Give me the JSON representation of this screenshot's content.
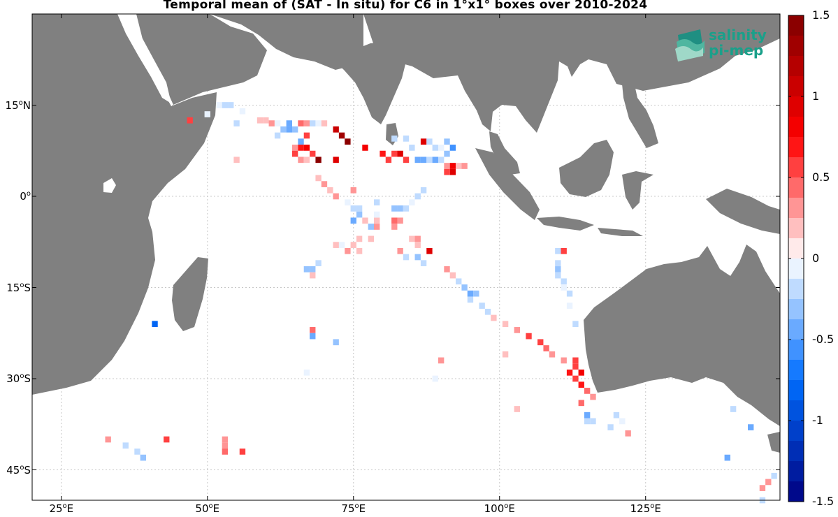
{
  "title": "Temporal mean of (SAT - In situ) for C6 in 1°x1° boxes over 2010-2024",
  "logo": {
    "line1": "salinity",
    "line2": "pi-mep"
  },
  "colors": {
    "land": "#808080",
    "ocean": "#ffffff",
    "grid": "#bbbbbb"
  },
  "map": {
    "lon_range": [
      20,
      148
    ],
    "lat_range": [
      -50,
      30
    ],
    "lat_ticks": [
      {
        "value": 15,
        "num": "15",
        "hem": "N"
      },
      {
        "value": 0,
        "num": "0",
        "hem": ""
      },
      {
        "value": -15,
        "num": "15",
        "hem": "S"
      },
      {
        "value": -30,
        "num": "30",
        "hem": "S"
      },
      {
        "value": -45,
        "num": "45",
        "hem": "S"
      }
    ],
    "lon_ticks": [
      {
        "value": 25,
        "num": "25",
        "hem": "E"
      },
      {
        "value": 50,
        "num": "50",
        "hem": "E"
      },
      {
        "value": 75,
        "num": "75",
        "hem": "E"
      },
      {
        "value": 100,
        "num": "100",
        "hem": "E"
      },
      {
        "value": 125,
        "num": "125",
        "hem": "E"
      }
    ]
  },
  "colorbar": {
    "min": -1.5,
    "max": 1.5,
    "ticks": [
      {
        "value": 1.5,
        "label": "1.5"
      },
      {
        "value": 1,
        "label": "1"
      },
      {
        "value": 0.5,
        "label": "0.5"
      },
      {
        "value": 0,
        "label": "0"
      },
      {
        "value": -0.5,
        "label": "-0.5"
      },
      {
        "value": -1,
        "label": "-1"
      },
      {
        "value": -1.5,
        "label": "-1.5"
      }
    ]
  },
  "chart_data": {
    "type": "heatmap",
    "title": "Temporal mean of (SAT - In situ) for C6 in 1°x1° boxes over 2010-2024",
    "value_range": [
      -1.5,
      1.5
    ],
    "boxes": [
      {
        "lon": 47,
        "lat": 12.5,
        "v": 0.6
      },
      {
        "lon": 50,
        "lat": 13.5,
        "v": -0.1
      },
      {
        "lon": 52,
        "lat": 15,
        "v": -0.1
      },
      {
        "lon": 53,
        "lat": 15,
        "v": -0.2
      },
      {
        "lon": 54,
        "lat": 15,
        "v": -0.15
      },
      {
        "lon": 55,
        "lat": 12,
        "v": -0.2
      },
      {
        "lon": 56,
        "lat": 14,
        "v": -0.1
      },
      {
        "lon": 59,
        "lat": 12.5,
        "v": 0.15
      },
      {
        "lon": 60,
        "lat": 12.5,
        "v": 0.2
      },
      {
        "lon": 61,
        "lat": 12,
        "v": 0.25
      },
      {
        "lon": 62,
        "lat": 12,
        "v": -0.1
      },
      {
        "lon": 62,
        "lat": 10,
        "v": -0.15
      },
      {
        "lon": 63,
        "lat": 11,
        "v": -0.3
      },
      {
        "lon": 64,
        "lat": 11,
        "v": -0.4
      },
      {
        "lon": 64,
        "lat": 12,
        "v": -0.5
      },
      {
        "lon": 65,
        "lat": 11,
        "v": -0.3
      },
      {
        "lon": 66,
        "lat": 12,
        "v": 0.4
      },
      {
        "lon": 67,
        "lat": 10,
        "v": 0.6
      },
      {
        "lon": 67,
        "lat": 12,
        "v": 0.3
      },
      {
        "lon": 68,
        "lat": 12,
        "v": -0.15
      },
      {
        "lon": 69,
        "lat": 12,
        "v": -0.1
      },
      {
        "lon": 70,
        "lat": 12,
        "v": 0.15
      },
      {
        "lon": 72,
        "lat": 11,
        "v": 1.1
      },
      {
        "lon": 73,
        "lat": 10,
        "v": 1.3
      },
      {
        "lon": 74,
        "lat": 9,
        "v": 1.5
      },
      {
        "lon": 66,
        "lat": 9,
        "v": -0.5
      },
      {
        "lon": 65,
        "lat": 8,
        "v": 0.3
      },
      {
        "lon": 66,
        "lat": 8,
        "v": 0.7
      },
      {
        "lon": 67,
        "lat": 8,
        "v": 0.8
      },
      {
        "lon": 68,
        "lat": 7,
        "v": 0.5
      },
      {
        "lon": 65,
        "lat": 7,
        "v": 0.5
      },
      {
        "lon": 69,
        "lat": 6,
        "v": 1.4
      },
      {
        "lon": 72,
        "lat": 6,
        "v": 0.9
      },
      {
        "lon": 66,
        "lat": 6,
        "v": 0.3
      },
      {
        "lon": 67,
        "lat": 6,
        "v": 0.2
      },
      {
        "lon": 77,
        "lat": 8,
        "v": 0.8
      },
      {
        "lon": 80,
        "lat": 7,
        "v": 0.7
      },
      {
        "lon": 81,
        "lat": 6,
        "v": 0.6
      },
      {
        "lon": 82,
        "lat": 7,
        "v": 0.5
      },
      {
        "lon": 83,
        "lat": 7,
        "v": 0.9
      },
      {
        "lon": 84,
        "lat": 6,
        "v": 0.6
      },
      {
        "lon": 85,
        "lat": 8,
        "v": -0.15
      },
      {
        "lon": 82,
        "lat": 9.5,
        "v": -0.2
      },
      {
        "lon": 84,
        "lat": 9.5,
        "v": -0.15
      },
      {
        "lon": 87,
        "lat": 9,
        "v": 0.9
      },
      {
        "lon": 88,
        "lat": 9,
        "v": -0.2
      },
      {
        "lon": 89,
        "lat": 8,
        "v": -0.15
      },
      {
        "lon": 90,
        "lat": 8,
        "v": -0.1
      },
      {
        "lon": 91,
        "lat": 9,
        "v": -0.3
      },
      {
        "lon": 92,
        "lat": 8,
        "v": -0.6
      },
      {
        "lon": 91,
        "lat": 7,
        "v": -0.3
      },
      {
        "lon": 86,
        "lat": 6,
        "v": -0.5
      },
      {
        "lon": 87,
        "lat": 6,
        "v": -0.5
      },
      {
        "lon": 88,
        "lat": 6,
        "v": -0.2
      },
      {
        "lon": 89,
        "lat": 6,
        "v": -0.4
      },
      {
        "lon": 90,
        "lat": 6,
        "v": -0.2
      },
      {
        "lon": 91,
        "lat": 5,
        "v": 0.3
      },
      {
        "lon": 92,
        "lat": 5,
        "v": 0.8
      },
      {
        "lon": 92,
        "lat": 4,
        "v": 0.9
      },
      {
        "lon": 91,
        "lat": 4,
        "v": 0.6
      },
      {
        "lon": 93,
        "lat": 5,
        "v": 0.2
      },
      {
        "lon": 94,
        "lat": 5,
        "v": 0.25
      },
      {
        "lon": 55,
        "lat": 6,
        "v": 0.2
      },
      {
        "lon": 69,
        "lat": 3,
        "v": 0.2
      },
      {
        "lon": 70,
        "lat": 2,
        "v": 0.25
      },
      {
        "lon": 71,
        "lat": 1,
        "v": 0.2
      },
      {
        "lon": 72,
        "lat": 0,
        "v": 0.25
      },
      {
        "lon": 74,
        "lat": -1,
        "v": -0.1
      },
      {
        "lon": 75,
        "lat": 1,
        "v": 0.3
      },
      {
        "lon": 75,
        "lat": -2,
        "v": -0.15
      },
      {
        "lon": 75,
        "lat": -4,
        "v": -0.5
      },
      {
        "lon": 76,
        "lat": -2,
        "v": -0.2
      },
      {
        "lon": 76,
        "lat": -3,
        "v": -0.3
      },
      {
        "lon": 77,
        "lat": -4,
        "v": 0.2
      },
      {
        "lon": 78,
        "lat": -5,
        "v": -0.3
      },
      {
        "lon": 79,
        "lat": -4,
        "v": 0.15
      },
      {
        "lon": 78,
        "lat": -7,
        "v": 0.2
      },
      {
        "lon": 75,
        "lat": -8,
        "v": 0.2
      },
      {
        "lon": 76,
        "lat": -7,
        "v": 0.15
      },
      {
        "lon": 74,
        "lat": -9,
        "v": 0.25
      },
      {
        "lon": 73,
        "lat": -8,
        "v": -0.1
      },
      {
        "lon": 72,
        "lat": -8,
        "v": 0.2
      },
      {
        "lon": 76,
        "lat": -9,
        "v": 0.15
      },
      {
        "lon": 79,
        "lat": -3,
        "v": -0.1
      },
      {
        "lon": 79,
        "lat": -5,
        "v": 0.3
      },
      {
        "lon": 79,
        "lat": -1,
        "v": -0.15
      },
      {
        "lon": 82,
        "lat": -2,
        "v": -0.3
      },
      {
        "lon": 83,
        "lat": -2,
        "v": -0.3
      },
      {
        "lon": 84,
        "lat": -2,
        "v": -0.2
      },
      {
        "lon": 85,
        "lat": -1,
        "v": -0.1
      },
      {
        "lon": 86,
        "lat": 0,
        "v": -0.2
      },
      {
        "lon": 87,
        "lat": 1,
        "v": -0.15
      },
      {
        "lon": 82,
        "lat": -4,
        "v": 0.4
      },
      {
        "lon": 83,
        "lat": -4,
        "v": 0.35
      },
      {
        "lon": 82,
        "lat": -5,
        "v": 0.3
      },
      {
        "lon": 85,
        "lat": -7,
        "v": 0.2
      },
      {
        "lon": 86,
        "lat": -7,
        "v": 0.25
      },
      {
        "lon": 86,
        "lat": -8,
        "v": 0.2
      },
      {
        "lon": 83,
        "lat": -9,
        "v": 0.3
      },
      {
        "lon": 84,
        "lat": -10,
        "v": -0.15
      },
      {
        "lon": 86,
        "lat": -10,
        "v": -0.3
      },
      {
        "lon": 87,
        "lat": -11,
        "v": -0.2
      },
      {
        "lon": 88,
        "lat": -9,
        "v": 0.9
      },
      {
        "lon": 91,
        "lat": -12,
        "v": 0.25
      },
      {
        "lon": 92,
        "lat": -13,
        "v": 0.2
      },
      {
        "lon": 93,
        "lat": -14,
        "v": -0.15
      },
      {
        "lon": 94,
        "lat": -15,
        "v": -0.3
      },
      {
        "lon": 95,
        "lat": -16,
        "v": -0.5
      },
      {
        "lon": 96,
        "lat": -16,
        "v": -0.3
      },
      {
        "lon": 95,
        "lat": -17,
        "v": -0.2
      },
      {
        "lon": 97,
        "lat": -18,
        "v": -0.15
      },
      {
        "lon": 98,
        "lat": -19,
        "v": -0.2
      },
      {
        "lon": 99,
        "lat": -20,
        "v": 0.2
      },
      {
        "lon": 101,
        "lat": -21,
        "v": 0.15
      },
      {
        "lon": 103,
        "lat": -22,
        "v": 0.3
      },
      {
        "lon": 105,
        "lat": -23,
        "v": 0.5
      },
      {
        "lon": 107,
        "lat": -24,
        "v": 0.6
      },
      {
        "lon": 108,
        "lat": -25,
        "v": 0.4
      },
      {
        "lon": 109,
        "lat": -26,
        "v": 0.3
      },
      {
        "lon": 111,
        "lat": -27,
        "v": 0.3
      },
      {
        "lon": 113,
        "lat": -27,
        "v": 0.5
      },
      {
        "lon": 113,
        "lat": -28,
        "v": 0.6
      },
      {
        "lon": 112,
        "lat": -29,
        "v": 0.7
      },
      {
        "lon": 114,
        "lat": -29,
        "v": 0.8
      },
      {
        "lon": 113,
        "lat": -30,
        "v": 0.5
      },
      {
        "lon": 114,
        "lat": -31,
        "v": 0.7
      },
      {
        "lon": 115,
        "lat": -32,
        "v": 0.4
      },
      {
        "lon": 116,
        "lat": -33,
        "v": 0.3
      },
      {
        "lon": 114,
        "lat": -34,
        "v": 0.4
      },
      {
        "lon": 101,
        "lat": -26,
        "v": 0.2
      },
      {
        "lon": 103,
        "lat": -35,
        "v": 0.2
      },
      {
        "lon": 110,
        "lat": -9,
        "v": -0.15
      },
      {
        "lon": 111,
        "lat": -9,
        "v": 0.6
      },
      {
        "lon": 110,
        "lat": -11,
        "v": -0.2
      },
      {
        "lon": 110,
        "lat": -12,
        "v": -0.3
      },
      {
        "lon": 110,
        "lat": -13,
        "v": -0.2
      },
      {
        "lon": 111,
        "lat": -14,
        "v": -0.15
      },
      {
        "lon": 111,
        "lat": -15,
        "v": -0.1
      },
      {
        "lon": 112,
        "lat": -16,
        "v": -0.15
      },
      {
        "lon": 112,
        "lat": -18,
        "v": -0.1
      },
      {
        "lon": 113,
        "lat": -21,
        "v": -0.15
      },
      {
        "lon": 115,
        "lat": -37,
        "v": -0.2
      },
      {
        "lon": 116,
        "lat": -37,
        "v": -0.15
      },
      {
        "lon": 119,
        "lat": -38,
        "v": -0.15
      },
      {
        "lon": 121,
        "lat": -37,
        "v": -0.1
      },
      {
        "lon": 122,
        "lat": -39,
        "v": 0.3
      },
      {
        "lon": 115,
        "lat": -36,
        "v": -0.4
      },
      {
        "lon": 120,
        "lat": -36,
        "v": -0.2
      },
      {
        "lon": 140,
        "lat": -35,
        "v": -0.2
      },
      {
        "lon": 143,
        "lat": -38,
        "v": -0.4
      },
      {
        "lon": 139,
        "lat": -43,
        "v": -0.4
      },
      {
        "lon": 145,
        "lat": -48,
        "v": 0.25
      },
      {
        "lon": 146,
        "lat": -47,
        "v": 0.3
      },
      {
        "lon": 147,
        "lat": -46,
        "v": -0.2
      },
      {
        "lon": 145,
        "lat": -50,
        "v": -0.15
      },
      {
        "lon": 67,
        "lat": -12,
        "v": -0.3
      },
      {
        "lon": 68,
        "lat": -12,
        "v": -0.3
      },
      {
        "lon": 69,
        "lat": -11,
        "v": -0.15
      },
      {
        "lon": 68,
        "lat": -13,
        "v": 0.2
      },
      {
        "lon": 68,
        "lat": -22,
        "v": 0.4
      },
      {
        "lon": 68,
        "lat": -23,
        "v": -0.4
      },
      {
        "lon": 72,
        "lat": -24,
        "v": -0.3
      },
      {
        "lon": 67,
        "lat": -29,
        "v": -0.1
      },
      {
        "lon": 89,
        "lat": -30,
        "v": -0.1
      },
      {
        "lon": 90,
        "lat": -27,
        "v": 0.3
      },
      {
        "lon": 41,
        "lat": -21,
        "v": -0.8
      },
      {
        "lon": 33,
        "lat": -40,
        "v": 0.3
      },
      {
        "lon": 36,
        "lat": -41,
        "v": -0.2
      },
      {
        "lon": 38,
        "lat": -42,
        "v": -0.2
      },
      {
        "lon": 39,
        "lat": -43,
        "v": -0.3
      },
      {
        "lon": 43,
        "lat": -40,
        "v": 0.5
      },
      {
        "lon": 53,
        "lat": -40,
        "v": 0.25
      },
      {
        "lon": 53,
        "lat": -41,
        "v": 0.3
      },
      {
        "lon": 56,
        "lat": -42,
        "v": 0.5
      },
      {
        "lon": 53,
        "lat": -42,
        "v": 0.4
      }
    ]
  }
}
